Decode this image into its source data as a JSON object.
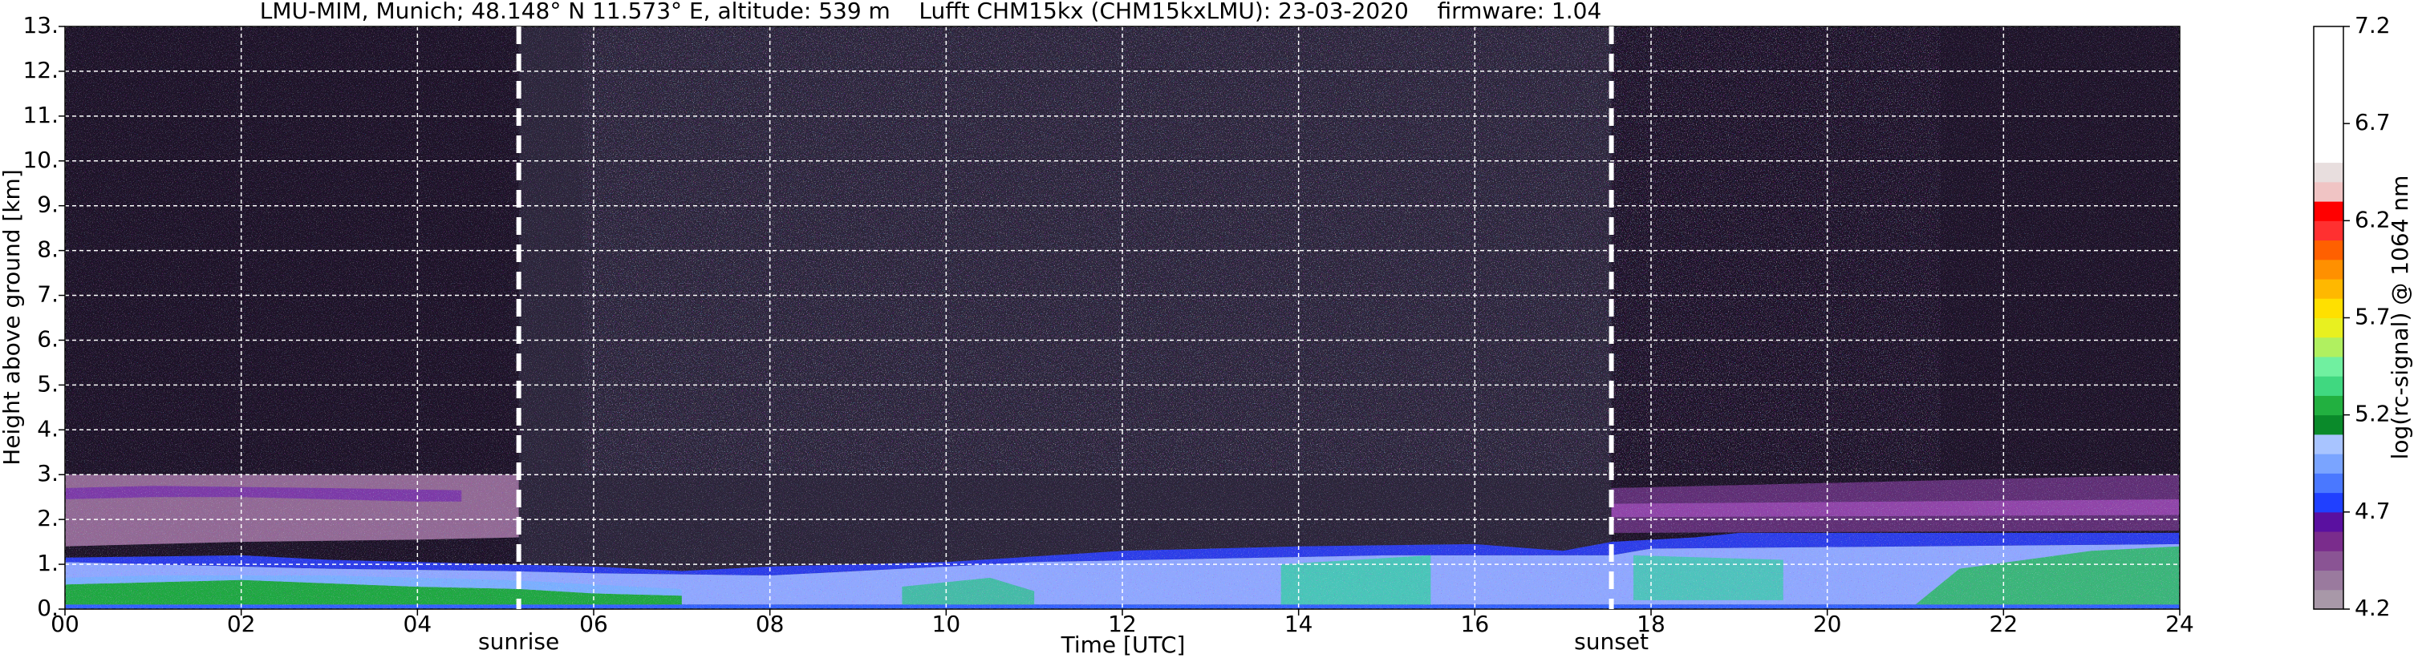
{
  "chart_data": {
    "type": "heatmap",
    "title": "LMU-MIM, Munich; 48.148° N 11.573° E, altitude: 539 m    Lufft CHM15kx (CHM15kxLMU): 23-03-2020    firmware: 1.04",
    "x_label": "Time [UTC]",
    "y_label": "Height above ground [km]",
    "xlim": [
      0,
      24
    ],
    "xticks": [
      {
        "value": 0,
        "label": "00"
      },
      {
        "value": 2,
        "label": "02"
      },
      {
        "value": 4,
        "label": "04"
      },
      {
        "value": 6,
        "label": "06"
      },
      {
        "value": 8,
        "label": "08"
      },
      10,
      12,
      14,
      16,
      18,
      20,
      22,
      24
    ],
    "ylim": [
      0,
      13
    ],
    "yticks": [
      {
        "value": 0,
        "label": "0."
      },
      {
        "value": 1,
        "label": "1."
      },
      {
        "value": 2,
        "label": "2."
      },
      {
        "value": 3,
        "label": "3."
      },
      {
        "value": 4,
        "label": "4."
      },
      {
        "value": 5,
        "label": "5."
      },
      {
        "value": 6,
        "label": "6."
      },
      {
        "value": 7,
        "label": "7."
      },
      {
        "value": 8,
        "label": "8."
      },
      {
        "value": 9,
        "label": "9."
      },
      {
        "value": 10,
        "label": "10."
      },
      {
        "value": 11,
        "label": "11."
      },
      {
        "value": 12,
        "label": "12."
      },
      {
        "value": 13,
        "label": "13."
      }
    ],
    "grid": true,
    "grid_color": "#ffffff",
    "annotations": [
      {
        "text": "sunrise",
        "x": 5.15
      },
      {
        "text": "sunset",
        "x": 17.55
      }
    ],
    "colorbar": {
      "label": "log(rc-signal) @ 1064 nm",
      "clim": [
        4.2,
        7.2
      ],
      "ticks": [
        4.2,
        4.7,
        5.2,
        5.7,
        6.2,
        6.7,
        7.2
      ],
      "colors": [
        "#a898a8",
        "#9a7a9e",
        "#8a5494",
        "#7a2c8c",
        "#5a10a0",
        "#2040ff",
        "#4a78ff",
        "#7aa4ff",
        "#a8c4ff",
        "#0a8a2a",
        "#22b040",
        "#40d880",
        "#70f0a0",
        "#b0f060",
        "#e8f020",
        "#ffe000",
        "#ffb800",
        "#ff9000",
        "#ff6000",
        "#ff3030",
        "#ff0000",
        "#f0c4c4",
        "#e8dede",
        "#ffffff",
        "#ffffff",
        "#ffffff",
        "#ffffff",
        "#ffffff",
        "#ffffff",
        "#ffffff"
      ]
    }
  }
}
